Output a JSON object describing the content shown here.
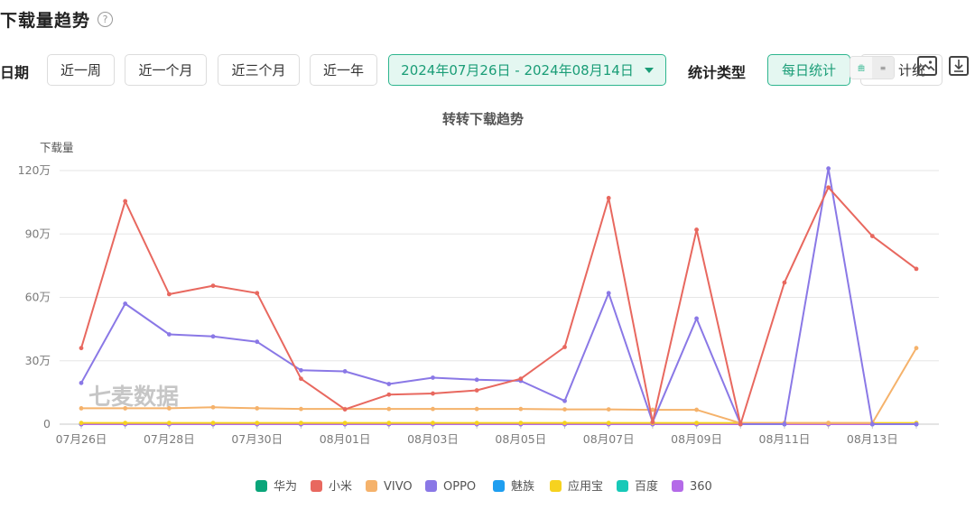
{
  "header": {
    "title": "下载量趋势",
    "help_icon": "?"
  },
  "filters": {
    "date_label": "日期",
    "ranges": [
      "近一周",
      "近一个月",
      "近三个月",
      "近一年"
    ],
    "date_range": "2024年07月26日 - 2024年08月14日",
    "stat_type_label": "统计类型",
    "stat_types": [
      "每日统计",
      "计统"
    ],
    "mini_toggle": [
      "曲",
      "≡"
    ]
  },
  "toolbar": {
    "icons": [
      "image-icon",
      "download-icon"
    ]
  },
  "watermark": "七麦数据",
  "chart_data": {
    "type": "line",
    "title": "转转下载趋势",
    "ylabel": "下载量",
    "ylim": [
      0,
      1200000
    ],
    "ytick_labels": [
      "0",
      "30万",
      "60万",
      "90万",
      "120万"
    ],
    "x": [
      "07月26日",
      "07月27日",
      "07月28日",
      "07月29日",
      "07月30日",
      "07月31日",
      "08月01日",
      "08月02日",
      "08月03日",
      "08月04日",
      "08月05日",
      "08月06日",
      "08月07日",
      "08月08日",
      "08月09日",
      "08月10日",
      "08月11日",
      "08月12日",
      "08月13日",
      "08月14日"
    ],
    "xtick_labels": [
      "07月26日",
      "07月28日",
      "07月30日",
      "08月01日",
      "08月03日",
      "08月05日",
      "08月07日",
      "08月09日",
      "08月11日",
      "08月13日"
    ],
    "grid": true,
    "legend_position": "bottom",
    "series": [
      {
        "name": "华为",
        "color": "#0aa57a",
        "values": [
          0,
          0,
          0,
          0,
          0,
          0,
          0,
          0,
          0,
          0,
          0,
          0,
          0,
          0,
          0,
          0,
          0,
          0,
          0,
          0
        ]
      },
      {
        "name": "小米",
        "color": "#e8685f",
        "values": [
          360000,
          1055000,
          615000,
          655000,
          620000,
          215000,
          70000,
          140000,
          145000,
          160000,
          215000,
          365000,
          1070000,
          10000,
          920000,
          0,
          670000,
          1120000,
          890000,
          735000
        ]
      },
      {
        "name": "VIVO",
        "color": "#f5b26b",
        "values": [
          75000,
          75000,
          75000,
          80000,
          75000,
          72000,
          72000,
          72000,
          72000,
          72000,
          72000,
          70000,
          70000,
          68000,
          68000,
          5000,
          5000,
          5000,
          5000,
          360000
        ]
      },
      {
        "name": "OPPO",
        "color": "#8a78e6",
        "values": [
          195000,
          570000,
          425000,
          415000,
          390000,
          255000,
          250000,
          190000,
          220000,
          210000,
          205000,
          110000,
          620000,
          10000,
          500000,
          0,
          0,
          1210000,
          0,
          0
        ]
      },
      {
        "name": "魅族",
        "color": "#1e9ef0",
        "values": [
          0,
          0,
          0,
          0,
          0,
          0,
          0,
          0,
          0,
          0,
          0,
          0,
          0,
          0,
          0,
          0,
          0,
          0,
          0,
          0
        ]
      },
      {
        "name": "应用宝",
        "color": "#f6d21f",
        "values": [
          6000,
          6000,
          6000,
          6000,
          6000,
          6000,
          6000,
          6000,
          6000,
          6000,
          6000,
          6000,
          6000,
          6000,
          6000,
          6000,
          6000,
          6000,
          6000,
          6000
        ]
      },
      {
        "name": "百度",
        "color": "#17c9b8",
        "values": [
          0,
          0,
          0,
          0,
          0,
          0,
          0,
          0,
          0,
          0,
          0,
          0,
          0,
          0,
          0,
          0,
          0,
          0,
          0,
          0
        ]
      },
      {
        "name": "360",
        "color": "#b46ae8",
        "values": [
          0,
          0,
          0,
          0,
          0,
          0,
          0,
          0,
          0,
          0,
          0,
          0,
          0,
          0,
          0,
          0,
          0,
          0,
          0,
          0
        ]
      }
    ]
  }
}
